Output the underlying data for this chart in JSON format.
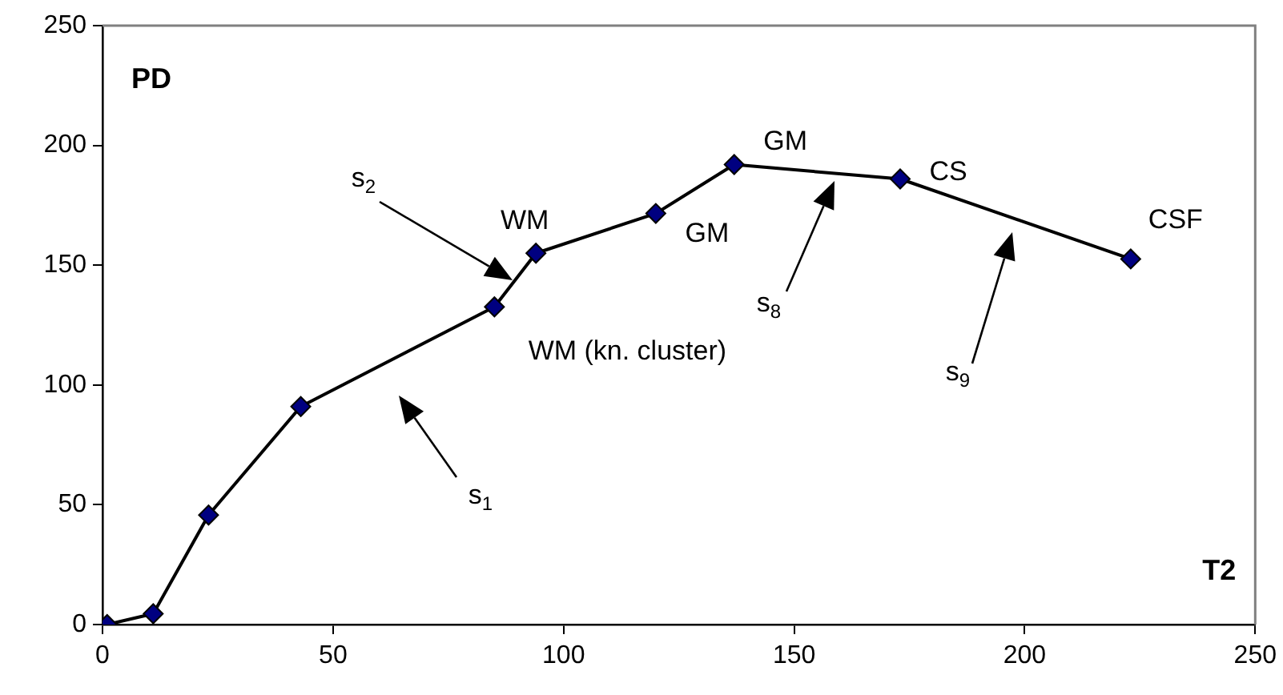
{
  "chart_data": {
    "type": "line",
    "xlabel": "T2",
    "ylabel": "PD",
    "x": [
      1,
      11,
      23,
      43,
      85,
      94,
      120,
      137,
      173,
      223
    ],
    "values": [
      0,
      4.5,
      45.7,
      91,
      132.6,
      155,
      171.6,
      192,
      186,
      152.6
    ],
    "color": "#000080",
    "marker": "diamond",
    "line_style": "solid",
    "grid": false,
    "legend": false,
    "xlim": [
      0,
      250
    ],
    "xticks": [
      0,
      50,
      100,
      150,
      200,
      250
    ],
    "ylim": [
      0,
      250
    ],
    "yticks": [
      0,
      50,
      100,
      150,
      200,
      250
    ],
    "annotations": [
      {
        "text": "WM",
        "x": 94,
        "y": 155
      },
      {
        "text": "WM (kn. cluster)",
        "x": 85,
        "y": 132.6
      },
      {
        "text": "GM",
        "x": 120,
        "y": 171.6
      },
      {
        "text": "GM",
        "x": 137,
        "y": 192
      },
      {
        "text": "CS",
        "x": 173,
        "y": 186
      },
      {
        "text": "CSF",
        "x": 223,
        "y": 152.6
      },
      "s$_{1}$",
      "s$_{2}$",
      "s$_{8}$",
      "s$_{9}$"
    ]
  }
}
